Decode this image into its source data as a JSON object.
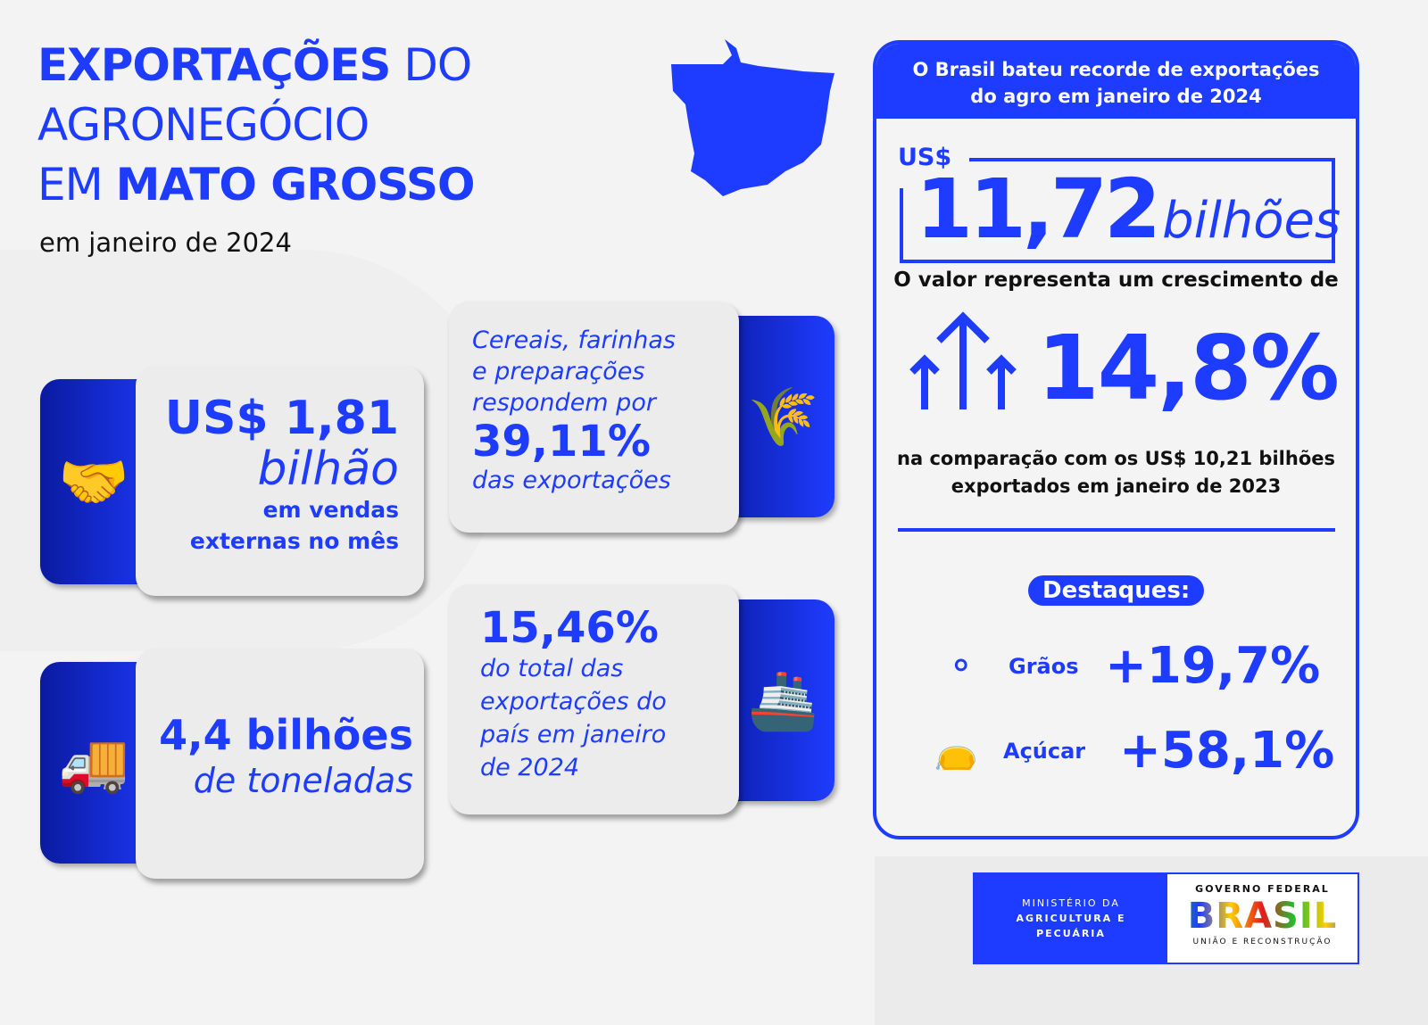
{
  "title": {
    "line1_bold": "EXPORTAÇÕES",
    "line1_light": "DO",
    "line2": "AGRONEGÓCIO",
    "line3_light": "EM",
    "line3_bold": "MATO GROSSO",
    "subtitle": "em janeiro de 2024"
  },
  "cards": {
    "sales": {
      "value": "US$ 1,81",
      "unit": "bilhão",
      "desc1": "em vendas",
      "desc2": "externas no mês",
      "icon": "handshake-icon"
    },
    "cereals": {
      "line1": "Cereais, farinhas",
      "line2": "e preparações",
      "line3": "respondem por",
      "value": "39,11%",
      "line4": "das exportações",
      "icon": "wheat-icon"
    },
    "share": {
      "value": "15,46%",
      "line1": "do total das",
      "line2": "exportações do",
      "line3": "país em janeiro",
      "line4": "de 2024",
      "icon": "ship-icon"
    },
    "tonnes": {
      "value": "4,4 bilhões",
      "unit": "de toneladas",
      "icon": "truck-icon"
    }
  },
  "panel": {
    "header1": "O Brasil bateu recorde de exportações",
    "header2": "do agro em janeiro de 2024",
    "currency": "US$",
    "total": "11,72",
    "total_unit": "bilhões",
    "growth_intro": "O valor representa um crescimento de",
    "growth": "14,8%",
    "compare1": "na comparação com os US$ 10,21 bilhões",
    "compare2": "exportados em janeiro de 2023",
    "highlights_label": "Destaques:",
    "highlights": [
      {
        "label": "Grãos",
        "value": "+19,7%",
        "icon": "grains-icon"
      },
      {
        "label": "Açúcar",
        "value": "+58,1%",
        "icon": "sugar-sack-icon"
      }
    ]
  },
  "footer": {
    "ministry1": "MINISTÉRIO DA",
    "ministry2": "AGRICULTURA E",
    "ministry3": "PECUÁRIA",
    "gov": "GOVERNO FEDERAL",
    "brand": "BRASIL",
    "slogan": "UNIÃO E RECONSTRUÇÃO"
  },
  "colors": {
    "primary": "#1e3cff",
    "dark_blue": "#0a1aa0",
    "card_gray": "#ececec"
  }
}
